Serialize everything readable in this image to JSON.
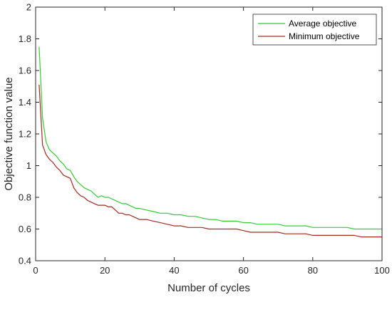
{
  "chart_data": {
    "type": "line",
    "xlabel": "Number of cycles",
    "ylabel": "Objective function value",
    "xlim": [
      0,
      100
    ],
    "ylim": [
      0.4,
      2
    ],
    "xticks": [
      0,
      20,
      40,
      60,
      80,
      100
    ],
    "yticks": [
      0.4,
      0.6,
      0.8,
      1,
      1.2,
      1.4,
      1.6,
      1.8,
      2
    ],
    "grid": false,
    "legend_position": "top-right",
    "series": [
      {
        "name": "Average objective",
        "color": "#33cc33",
        "x": [
          1,
          2,
          3,
          4,
          5,
          6,
          7,
          8,
          9,
          10,
          11,
          12,
          13,
          14,
          15,
          16,
          17,
          18,
          19,
          20,
          21,
          22,
          23,
          24,
          25,
          26,
          27,
          28,
          29,
          30,
          32,
          34,
          36,
          38,
          40,
          42,
          44,
          46,
          48,
          50,
          52,
          54,
          56,
          58,
          60,
          62,
          64,
          66,
          68,
          70,
          72,
          74,
          76,
          78,
          80,
          82,
          84,
          86,
          88,
          90,
          92,
          94,
          96,
          98,
          100
        ],
        "y": [
          1.75,
          1.3,
          1.15,
          1.1,
          1.08,
          1.06,
          1.03,
          1.01,
          0.98,
          0.97,
          0.93,
          0.9,
          0.88,
          0.86,
          0.85,
          0.84,
          0.82,
          0.8,
          0.81,
          0.8,
          0.8,
          0.79,
          0.78,
          0.77,
          0.76,
          0.76,
          0.75,
          0.74,
          0.73,
          0.73,
          0.72,
          0.71,
          0.7,
          0.7,
          0.69,
          0.69,
          0.68,
          0.68,
          0.67,
          0.66,
          0.66,
          0.65,
          0.65,
          0.65,
          0.64,
          0.64,
          0.63,
          0.63,
          0.63,
          0.63,
          0.62,
          0.62,
          0.62,
          0.62,
          0.61,
          0.61,
          0.61,
          0.61,
          0.61,
          0.61,
          0.6,
          0.6,
          0.6,
          0.6,
          0.6
        ]
      },
      {
        "name": "Minimum objective",
        "color": "#a52a1e",
        "x": [
          1,
          2,
          3,
          4,
          5,
          6,
          7,
          8,
          9,
          10,
          11,
          12,
          13,
          14,
          15,
          16,
          17,
          18,
          19,
          20,
          21,
          22,
          23,
          24,
          25,
          26,
          27,
          28,
          29,
          30,
          32,
          34,
          36,
          38,
          40,
          42,
          44,
          46,
          48,
          50,
          52,
          54,
          56,
          58,
          60,
          62,
          64,
          66,
          68,
          70,
          72,
          74,
          76,
          78,
          80,
          82,
          84,
          86,
          88,
          90,
          92,
          94,
          96,
          98,
          100
        ],
        "y": [
          1.51,
          1.13,
          1.07,
          1.04,
          1.02,
          0.99,
          0.97,
          0.94,
          0.93,
          0.92,
          0.86,
          0.83,
          0.81,
          0.8,
          0.78,
          0.77,
          0.76,
          0.75,
          0.75,
          0.75,
          0.74,
          0.74,
          0.72,
          0.7,
          0.7,
          0.69,
          0.69,
          0.68,
          0.67,
          0.66,
          0.66,
          0.65,
          0.64,
          0.63,
          0.62,
          0.62,
          0.61,
          0.61,
          0.61,
          0.6,
          0.6,
          0.6,
          0.6,
          0.6,
          0.59,
          0.58,
          0.58,
          0.58,
          0.58,
          0.58,
          0.57,
          0.57,
          0.57,
          0.57,
          0.56,
          0.56,
          0.56,
          0.56,
          0.56,
          0.56,
          0.56,
          0.55,
          0.55,
          0.55,
          0.55
        ]
      }
    ]
  }
}
